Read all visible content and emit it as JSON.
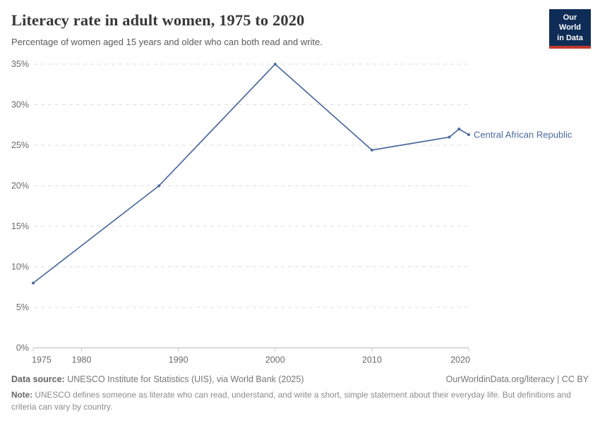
{
  "header": {
    "title": "Literacy rate in adult women, 1975 to 2020",
    "subtitle": "Percentage of women aged 15 years and older who can both read and write.",
    "logo": {
      "line1": "Our World",
      "line2": "in Data",
      "bg_color": "#0f2c56",
      "accent_color": "#c23a2d"
    }
  },
  "chart_data": {
    "type": "line",
    "title": "Literacy rate in adult women, 1975 to 2020",
    "xlabel": "",
    "ylabel": "",
    "x": [
      1975,
      1988,
      2000,
      2010,
      2018,
      2019,
      2020
    ],
    "series": [
      {
        "name": "Central African Republic",
        "color": "#4C6A9C",
        "values": [
          8,
          20,
          35,
          24.4,
          26,
          27,
          26.3
        ]
      }
    ],
    "end_label": "Central African Republic",
    "xticks": [
      1975,
      1980,
      1990,
      2000,
      2010,
      2020
    ],
    "yticks": [
      0,
      5,
      10,
      15,
      20,
      25,
      30,
      35
    ],
    "ytick_suffix": "%",
    "xlim": [
      1975,
      2020
    ],
    "ylim": [
      0,
      35
    ],
    "grid": "horizontal-dashed",
    "legend_position": "end-of-line"
  },
  "colors": {
    "line": "#4C6A9C",
    "gridline": "#dedede",
    "axis": "#b8b8b8",
    "tick": "#c9c9c9",
    "tick_text": "#6b6b6b"
  },
  "footer": {
    "source_label": "Data source:",
    "source_text": " UNESCO Institute for Statistics (UIS), via World Bank (2025)",
    "link_text": "OurWorldinData.org/literacy | CC BY",
    "note_label": "Note:",
    "note_text": " UNESCO defines someone as literate who can read, understand, and write a short, simple statement about their everyday life. But definitions and criteria can vary by country."
  }
}
